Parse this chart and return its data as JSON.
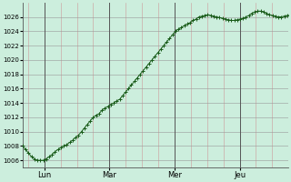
{
  "background_color": "#cceedd",
  "plot_bg_color": "#cceedd",
  "line_color": "#1a5c1a",
  "marker_color": "#1a5c1a",
  "grid_color_minor": "#cc9999",
  "grid_color_major": "#999999",
  "day_line_color": "#555555",
  "ylim": [
    1005,
    1028
  ],
  "yticks": [
    1006,
    1008,
    1010,
    1012,
    1014,
    1016,
    1018,
    1020,
    1022,
    1024,
    1026
  ],
  "day_labels": [
    "Lun",
    "Mar",
    "Mer",
    "Jeu"
  ],
  "n_points": 97,
  "values": [
    1008.0,
    1007.5,
    1007.0,
    1006.5,
    1006.2,
    1006.0,
    1006.0,
    1006.0,
    1006.2,
    1006.5,
    1006.8,
    1007.2,
    1007.5,
    1007.8,
    1008.0,
    1008.2,
    1008.5,
    1008.8,
    1009.2,
    1009.5,
    1010.0,
    1010.5,
    1011.0,
    1011.5,
    1012.0,
    1012.3,
    1012.5,
    1013.0,
    1013.3,
    1013.5,
    1013.8,
    1014.0,
    1014.3,
    1014.5,
    1015.0,
    1015.5,
    1016.0,
    1016.5,
    1017.0,
    1017.5,
    1018.0,
    1018.5,
    1019.0,
    1019.5,
    1020.0,
    1020.5,
    1021.0,
    1021.5,
    1022.0,
    1022.5,
    1023.0,
    1023.5,
    1024.0,
    1024.3,
    1024.5,
    1024.8,
    1025.0,
    1025.2,
    1025.5,
    1025.7,
    1026.0,
    1026.1,
    1026.2,
    1026.3,
    1026.2,
    1026.1,
    1026.0,
    1025.9,
    1025.8,
    1025.7,
    1025.6,
    1025.5,
    1025.5,
    1025.6,
    1025.7,
    1025.8,
    1026.0,
    1026.2,
    1026.5,
    1026.7,
    1026.8,
    1026.8,
    1026.7,
    1026.5,
    1026.3,
    1026.2,
    1026.1,
    1026.0,
    1026.0,
    1026.1,
    1026.2,
    1026.3,
    1026.2,
    1026.1,
    1026.1,
    1026.2,
    1026.3
  ]
}
